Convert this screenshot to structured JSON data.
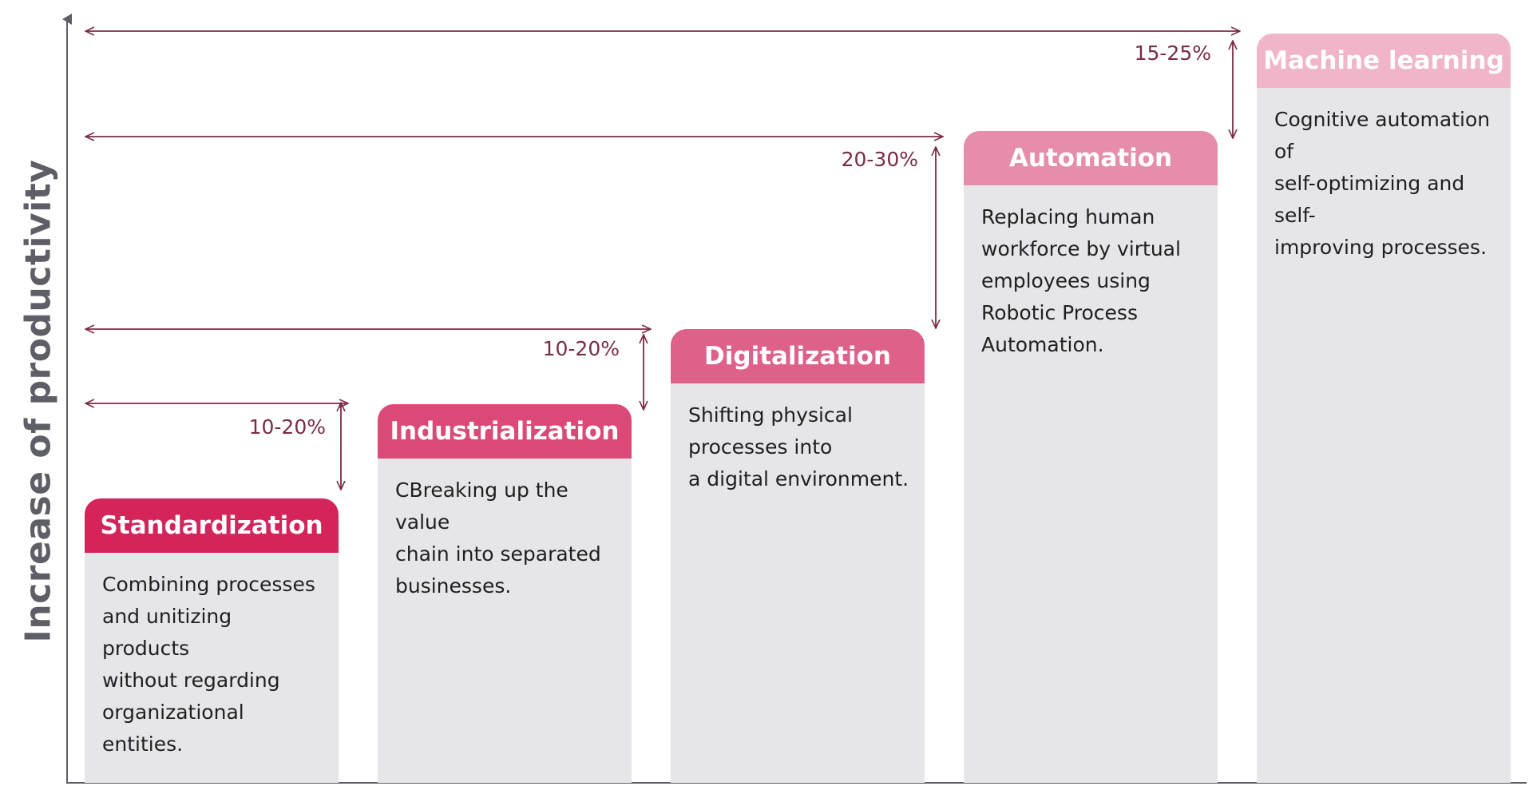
{
  "diagram": {
    "y_axis_label": "Increase of productivity",
    "arrow_color": "#7b2a45",
    "steps": [
      {
        "title": "Standardization",
        "description": "Combining processes\nand unitizing products\nwithout regarding\norganizational entities.",
        "color": "#d4245a"
      },
      {
        "title": "Industrialization",
        "description": "CBreaking up the value\nchain into separated\nbusinesses.",
        "color": "#db4a76"
      },
      {
        "title": "Digitalization",
        "description": "Shifting physical\nprocesses into\na digital environment.",
        "color": "#de6189"
      },
      {
        "title": "Automation",
        "description": "Replacing human\nworkforce by virtual\nemployees using\nRobotic Process\nAutomation.",
        "color": "#e68dab"
      },
      {
        "title": "Machine learning",
        "description": "Cognitive automation of\nself-optimizing and self-\nimproving processes.",
        "color": "#f0b5c8"
      }
    ],
    "increments": [
      {
        "label": "10-20%"
      },
      {
        "label": "10-20%"
      },
      {
        "label": "20-30%"
      },
      {
        "label": "15-25%"
      }
    ]
  }
}
